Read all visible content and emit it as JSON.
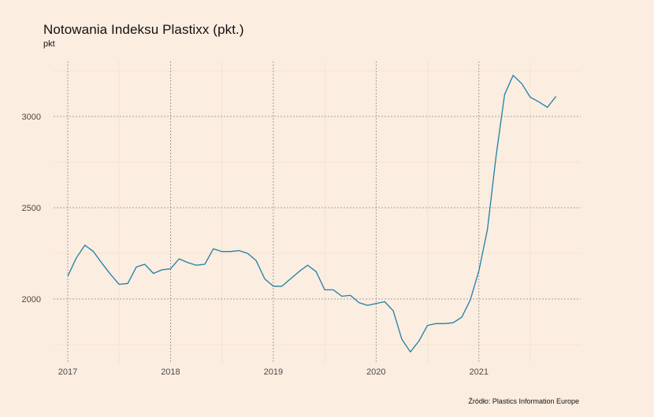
{
  "chart_data": {
    "type": "line",
    "title": "Notowania Indeksu Plastixx (pkt.)",
    "subtitle": "pkt",
    "caption": "Źródło: Plastics Information Europe",
    "xlabel": "",
    "ylabel": "",
    "x_tick_labels": [
      "2017",
      "2018",
      "2019",
      "2020",
      "2021"
    ],
    "y_tick_labels": [
      "2000",
      "2500",
      "3000"
    ],
    "ylim": [
      1700,
      3300
    ],
    "xlim": [
      "2017-01",
      "2021-10"
    ],
    "grid": true,
    "line_color": "#1F7FA8",
    "series": [
      {
        "x": [
          "2017-01",
          "2017-02",
          "2017-03",
          "2017-04",
          "2017-05",
          "2017-06",
          "2017-07",
          "2017-08",
          "2017-09",
          "2017-10",
          "2017-11",
          "2017-12",
          "2018-01",
          "2018-02",
          "2018-03",
          "2018-04",
          "2018-05",
          "2018-06",
          "2018-07",
          "2018-08",
          "2018-09",
          "2018-10",
          "2018-11",
          "2018-12",
          "2019-01",
          "2019-02",
          "2019-03",
          "2019-04",
          "2019-05",
          "2019-06",
          "2019-07",
          "2019-08",
          "2019-09",
          "2019-10",
          "2019-11",
          "2019-12",
          "2020-01",
          "2020-02",
          "2020-03",
          "2020-04",
          "2020-05",
          "2020-06",
          "2020-07",
          "2020-08",
          "2020-09",
          "2020-10",
          "2020-11",
          "2020-12",
          "2021-01",
          "2021-02",
          "2021-03",
          "2021-04",
          "2021-05",
          "2021-06",
          "2021-07",
          "2021-08",
          "2021-09",
          "2021-10"
        ],
        "values": [
          2125,
          2225,
          2295,
          2260,
          2195,
          2135,
          2080,
          2085,
          2175,
          2190,
          2140,
          2160,
          2165,
          2220,
          2200,
          2185,
          2190,
          2275,
          2260,
          2260,
          2265,
          2250,
          2210,
          2110,
          2070,
          2070,
          2110,
          2150,
          2185,
          2150,
          2050,
          2050,
          2015,
          2020,
          1980,
          1965,
          1975,
          1985,
          1935,
          1780,
          1710,
          1770,
          1855,
          1865,
          1865,
          1870,
          1900,
          1995,
          2155,
          2380,
          2780,
          3120,
          3225,
          3180,
          3105,
          3080,
          3050,
          3110
        ]
      }
    ]
  }
}
